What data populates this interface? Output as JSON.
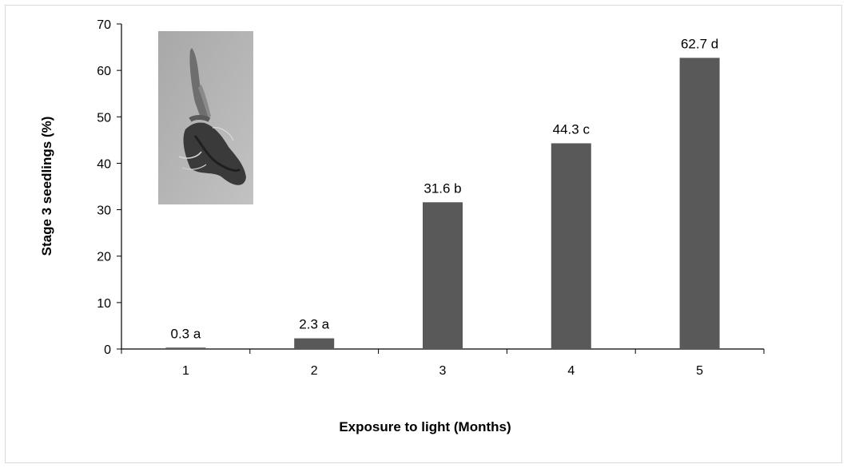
{
  "chart_data": {
    "type": "bar",
    "categories": [
      "1",
      "2",
      "3",
      "4",
      "5"
    ],
    "values": [
      0.3,
      2.3,
      31.6,
      44.3,
      62.7
    ],
    "data_labels": [
      "0.3 a",
      "2.3 a",
      "31.6 b",
      "44.3 c",
      "62.7 d"
    ],
    "xlabel": "Exposure to light (Months)",
    "ylabel": "Stage 3 seedlings (%)",
    "ylim": [
      0,
      70
    ],
    "yticks": [
      0,
      10,
      20,
      30,
      40,
      50,
      60,
      70
    ],
    "grid": false,
    "bar_color": "#595959",
    "inset_image": "seedling-photo"
  }
}
